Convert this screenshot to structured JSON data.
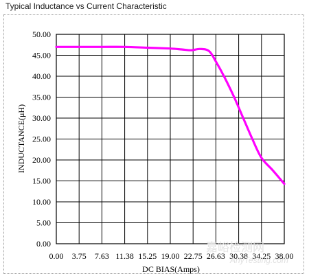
{
  "header": {
    "title": "Typical Inductance vs Current Characteristic"
  },
  "watermark": {
    "cn": "嘉峪检测网",
    "en": "AnyTesting.com"
  },
  "colors": {
    "curve": "#ff00ff",
    "grid": "#000000",
    "background": "#ffffff"
  },
  "chart_data": {
    "type": "line",
    "title": "",
    "xlabel": "DC BIAS(Amps)",
    "ylabel": "INDUCTANCE(μH)",
    "x_ticks": [
      "0.00",
      "3.75",
      "7.63",
      "11.38",
      "15.25",
      "19.00",
      "22.75",
      "26.63",
      "30.38",
      "34.25",
      "38.00"
    ],
    "y_ticks": [
      "0.00",
      "5.00",
      "10.00",
      "15.00",
      "20.00",
      "25.00",
      "30.00",
      "35.00",
      "40.00",
      "45.00",
      "50.00"
    ],
    "xlim": [
      0,
      10
    ],
    "ylim": [
      0,
      50
    ],
    "grid": true,
    "series": [
      {
        "color": "#ff00ff",
        "x": [
          0,
          1,
          2,
          3,
          4,
          5,
          5.5,
          5.9,
          6.3,
          6.7,
          7.0,
          7.4,
          7.8,
          8.2,
          8.6,
          9.0,
          9.5,
          10
        ],
        "y": [
          47.0,
          47.0,
          47.0,
          47.0,
          46.8,
          46.6,
          46.4,
          46.2,
          46.5,
          46.0,
          43.5,
          39.5,
          35.0,
          30.0,
          25.0,
          20.5,
          17.5,
          14.3
        ]
      }
    ]
  }
}
